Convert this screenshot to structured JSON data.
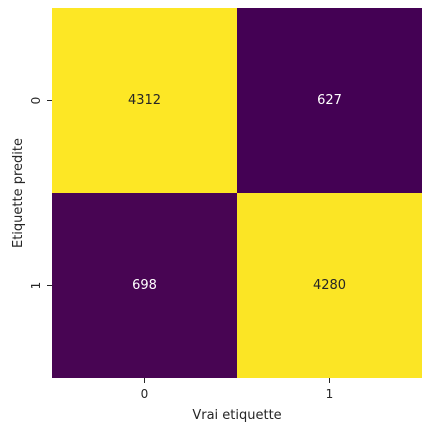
{
  "chart_data": {
    "type": "heatmap",
    "xlabel": "Vrai etiquette",
    "ylabel": "Etiquette predite",
    "x_categories": [
      "0",
      "1"
    ],
    "y_categories": [
      "0",
      "1"
    ],
    "values": [
      [
        4312,
        627
      ],
      [
        698,
        4280
      ]
    ],
    "colormap": "viridis",
    "colors": {
      "high": "#fde725",
      "low": "#440154",
      "text_on_high": "#262626",
      "text_on_low": "#ffffff"
    },
    "colorbar": false,
    "annotations": true
  }
}
